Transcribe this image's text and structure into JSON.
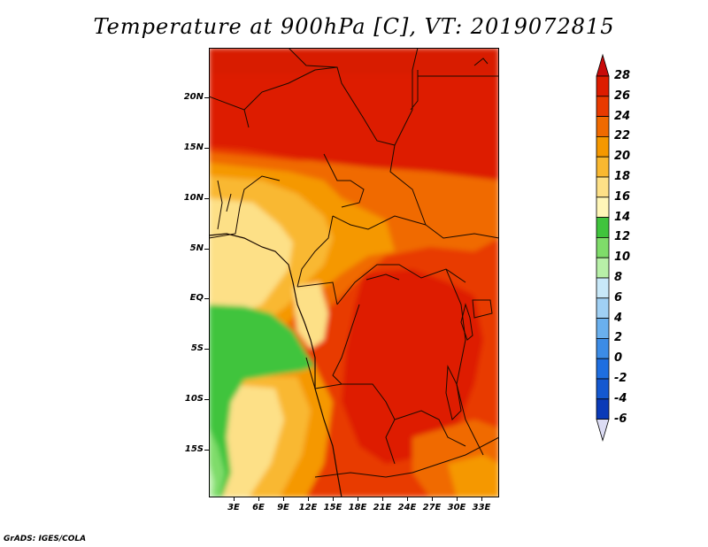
{
  "title": "Temperature at 900hPa [C], VT: 2019072815",
  "footer": "GrADS: IGES/COLA",
  "map": {
    "lat_labels": [
      "20N",
      "15N",
      "10N",
      "5N",
      "EQ",
      "5S",
      "10S",
      "15S"
    ],
    "lon_labels": [
      "3E",
      "6E",
      "9E",
      "12E",
      "15E",
      "18E",
      "21E",
      "24E",
      "27E",
      "30E",
      "33E"
    ]
  },
  "colorbar": {
    "levels": [
      "28",
      "26",
      "24",
      "22",
      "20",
      "18",
      "16",
      "14",
      "12",
      "10",
      "8",
      "6",
      "4",
      "2",
      "0",
      "-2",
      "-4",
      "-6"
    ],
    "colors": [
      "#dd1c00",
      "#e83a00",
      "#f06a00",
      "#f59800",
      "#f9b830",
      "#fde087",
      "#fff6b8",
      "#40c43d",
      "#7fdc6a",
      "#b8f0a8",
      "#c8e8f8",
      "#a0d0f4",
      "#6ab0ee",
      "#3c8ce6",
      "#1e6ee0",
      "#1458d0",
      "#0a3ab8",
      "#06168a"
    ],
    "top_color": "#c80a0a",
    "bottom_color": "#dcdcf4"
  }
}
